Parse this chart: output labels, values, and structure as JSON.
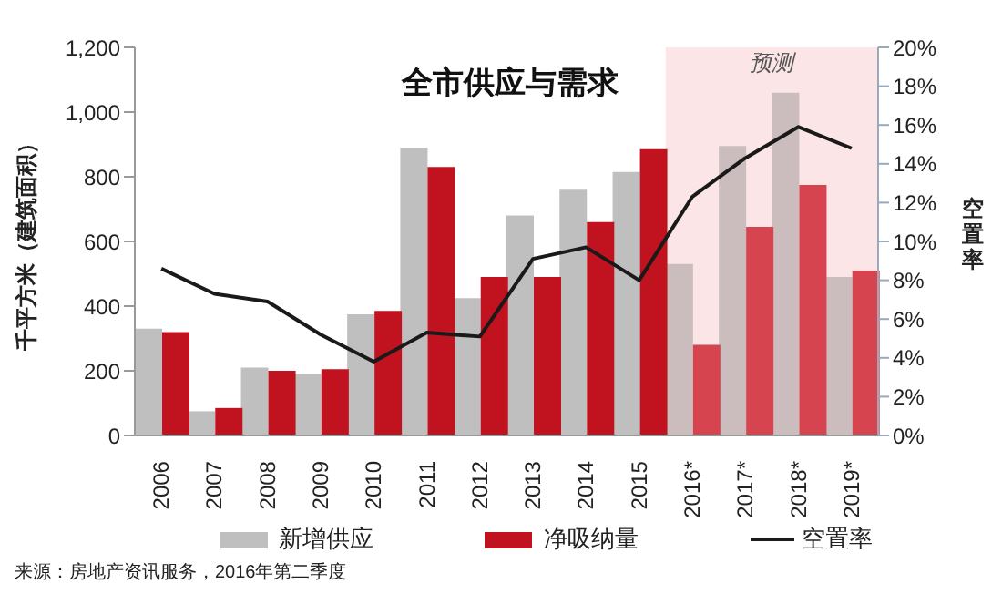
{
  "chart_data": {
    "type": "bar",
    "title": "全市供应与需求",
    "ylabel": "千平方米（建筑面积）",
    "y2label": "空置率",
    "categories": [
      "2006",
      "2007",
      "2008",
      "2009",
      "2010",
      "2011",
      "2012",
      "2013",
      "2014",
      "2015",
      "2016*",
      "2017*",
      "2018*",
      "2019*"
    ],
    "series": [
      {
        "name": "新增供应",
        "color": "#bfbfbf",
        "colors": [
          "#bfbfbf",
          "#bfbfbf",
          "#bfbfbf",
          "#bfbfbf",
          "#bfbfbf",
          "#bfbfbf",
          "#bfbfbf",
          "#bfbfbf",
          "#bfbfbf",
          "#bfbfbf",
          "#cbbdbe",
          "#cbbdbe",
          "#cbbdbe",
          "#cbbdbe"
        ],
        "values": [
          330,
          75,
          210,
          190,
          375,
          890,
          425,
          680,
          760,
          815,
          530,
          895,
          1060,
          490
        ]
      },
      {
        "name": "净吸纳量",
        "color": "#c0121f",
        "colors": [
          "#c0121f",
          "#c0121f",
          "#c0121f",
          "#c0121f",
          "#c0121f",
          "#c0121f",
          "#c0121f",
          "#c0121f",
          "#c0121f",
          "#c0121f",
          "#d5444f",
          "#d5444f",
          "#d5444f",
          "#d5444f"
        ],
        "values": [
          320,
          85,
          200,
          205,
          385,
          830,
          490,
          490,
          660,
          885,
          280,
          645,
          775,
          510
        ]
      },
      {
        "name": "空置率",
        "type": "line",
        "axis": "y2",
        "color": "#1a1a1a",
        "values": [
          8.6,
          7.3,
          6.9,
          5.2,
          3.8,
          5.3,
          5.1,
          9.1,
          9.7,
          8.0,
          12.3,
          14.3,
          15.9,
          14.8
        ]
      }
    ],
    "ylim": [
      0,
      1200
    ],
    "yticks": [
      0,
      200,
      400,
      600,
      800,
      {
        "value": 1000,
        "label": "1,000"
      },
      {
        "value": 1200,
        "label": "1,200"
      }
    ],
    "y2lim": [
      0,
      20
    ],
    "y2ticks": [
      {
        "value": 0,
        "label": "0%"
      },
      {
        "value": 2,
        "label": "2%"
      },
      {
        "value": 4,
        "label": "4%"
      },
      {
        "value": 6,
        "label": "6%"
      },
      {
        "value": 8,
        "label": "8%"
      },
      {
        "value": 10,
        "label": "10%"
      },
      {
        "value": 12,
        "label": "12%"
      },
      {
        "value": 14,
        "label": "14%"
      },
      {
        "value": 16,
        "label": "16%"
      },
      {
        "value": 18,
        "label": "18%"
      },
      {
        "value": 20,
        "label": "20%"
      }
    ],
    "bands": [
      {
        "axis": "x",
        "from": "2016*",
        "to": "2019*",
        "label": "预测",
        "color": "#fbe5e6"
      }
    ],
    "annotations": [
      "来源：房地产资讯服务，2016年第二季度"
    ],
    "legend": "bottom",
    "marker": "none",
    "line_style": "solid"
  }
}
